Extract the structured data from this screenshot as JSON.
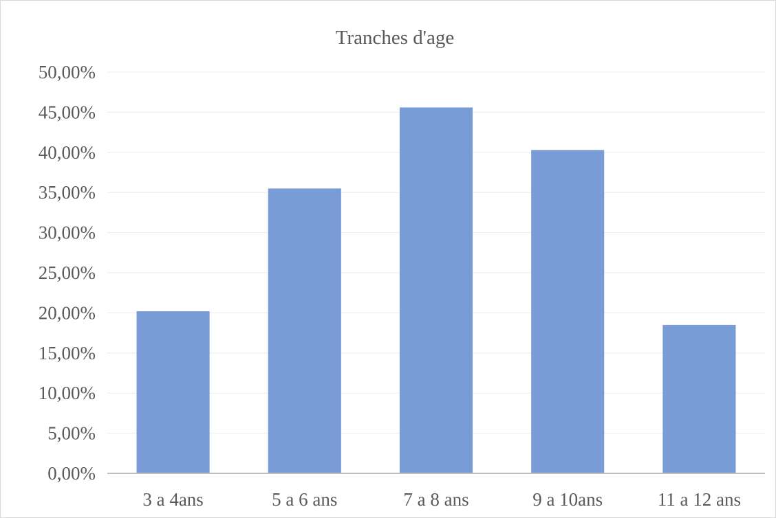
{
  "chart_data": {
    "type": "bar",
    "title": "Tranches d'age",
    "categories": [
      "3 a 4ans",
      "5 a 6 ans",
      "7 a 8 ans",
      "9 a 10ans",
      "11 a 12 ans"
    ],
    "values": [
      0.202,
      0.355,
      0.456,
      0.403,
      0.185
    ],
    "ylim": [
      0,
      0.5
    ],
    "ytick_values": [
      0,
      0.05,
      0.1,
      0.15,
      0.2,
      0.25,
      0.3,
      0.35,
      0.4,
      0.45,
      0.5
    ],
    "ytick_labels": [
      "0,00%",
      "5,00%",
      "10,00%",
      "15,00%",
      "20,00%",
      "25,00%",
      "30,00%",
      "35,00%",
      "40,00%",
      "45,00%",
      "50,00%"
    ],
    "grid": true,
    "legend": "none",
    "bar_color": "#7a9cd6",
    "axis_color": "#bfbfbf",
    "grid_color": "#ececec",
    "text_color": "#595959"
  }
}
